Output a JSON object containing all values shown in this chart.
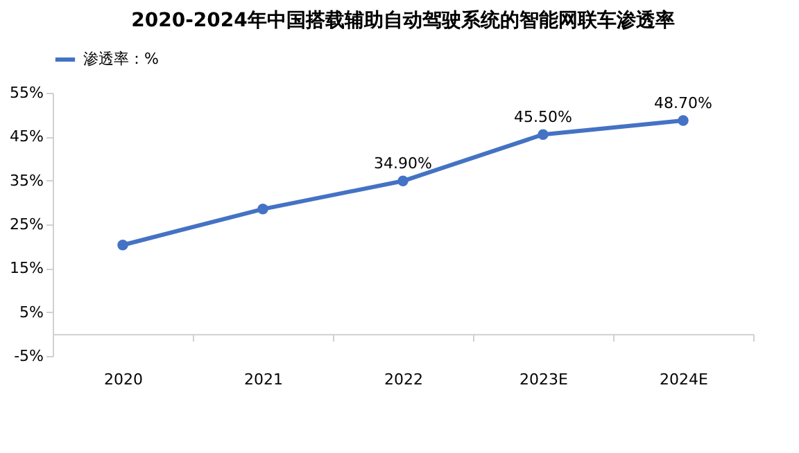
{
  "chart_data": {
    "type": "line",
    "title": "2020-2024年中国搭载辅助自动驾驶系统的智能网联车渗透率",
    "categories": [
      "2020",
      "2021",
      "2022",
      "2023E",
      "2024E"
    ],
    "series": [
      {
        "name": "渗透率：%",
        "color": "#4472c4",
        "values": [
          20.3,
          28.5,
          34.9,
          45.5,
          48.7
        ],
        "value_labels": [
          null,
          null,
          "34.90%",
          "45.50%",
          "48.70%"
        ]
      }
    ],
    "ylim": [
      -5,
      55
    ],
    "yticks": [
      {
        "value": -5,
        "label": "-5%"
      },
      {
        "value": 5,
        "label": "5%"
      },
      {
        "value": 15,
        "label": "15%"
      },
      {
        "value": 25,
        "label": "25%"
      },
      {
        "value": 35,
        "label": "35%"
      },
      {
        "value": 45,
        "label": "45%"
      },
      {
        "value": 55,
        "label": "55%"
      }
    ],
    "grid": false,
    "legend": "top",
    "marker": "circle",
    "line_style": "solid"
  }
}
